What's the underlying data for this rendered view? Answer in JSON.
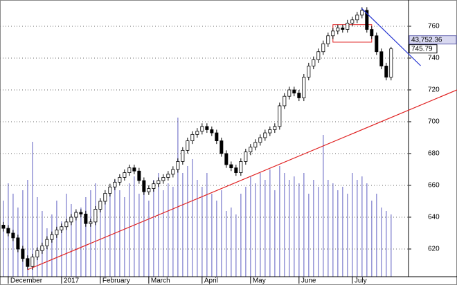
{
  "chart_data": {
    "type": "candlestick",
    "xticks": [
      {
        "value": 1,
        "label": "December"
      },
      {
        "value": 12,
        "label": "2017"
      },
      {
        "value": 20,
        "label": "February"
      },
      {
        "value": 30,
        "label": "March"
      },
      {
        "value": 41,
        "label": "April"
      },
      {
        "value": 51,
        "label": "May"
      },
      {
        "value": 61,
        "label": "June"
      },
      {
        "value": 72,
        "label": "July"
      }
    ],
    "xlim": [
      -0.7,
      83.6
    ],
    "ylim": [
      602.6,
      776.5
    ],
    "yticks": [
      620,
      640,
      660,
      680,
      700,
      720,
      740,
      760
    ],
    "grid": true,
    "open": [
      635,
      633,
      630,
      627,
      620,
      614,
      609,
      615,
      619,
      622,
      626,
      629,
      632,
      634,
      637,
      640,
      643,
      642,
      636,
      637,
      645,
      650,
      655,
      659,
      662,
      665,
      668,
      671,
      669,
      663,
      656,
      658,
      661,
      663,
      665,
      667,
      670,
      675,
      682,
      688,
      692,
      694,
      697,
      695,
      693,
      688,
      680,
      673,
      671,
      668,
      675,
      681,
      684,
      687,
      690,
      693,
      695,
      697,
      710,
      716,
      720,
      718,
      715,
      728,
      735,
      739,
      744,
      749,
      754,
      757,
      759,
      758,
      762,
      764,
      767,
      770,
      758,
      754,
      744,
      735,
      728
    ],
    "high": [
      637,
      635,
      632,
      629,
      622,
      616,
      617,
      621,
      624,
      628,
      631,
      634,
      636,
      639,
      642,
      645,
      645,
      644,
      639,
      647,
      652,
      657,
      661,
      664,
      667,
      670,
      673,
      673,
      671,
      665,
      660,
      663,
      665,
      667,
      669,
      672,
      677,
      684,
      690,
      694,
      696,
      699,
      699,
      697,
      695,
      690,
      682,
      675,
      673,
      677,
      683,
      686,
      689,
      692,
      695,
      697,
      699,
      712,
      718,
      722,
      722,
      720,
      730,
      737,
      741,
      746,
      751,
      756,
      759,
      761,
      761,
      764,
      766,
      769,
      772,
      772,
      760,
      756,
      746,
      737,
      747
    ],
    "low": [
      631,
      628,
      625,
      618,
      612,
      607,
      607,
      613,
      617,
      620,
      624,
      627,
      630,
      632,
      635,
      638,
      640,
      634,
      634,
      635,
      643,
      648,
      653,
      657,
      660,
      663,
      666,
      667,
      661,
      654,
      654,
      656,
      659,
      661,
      663,
      665,
      668,
      673,
      680,
      686,
      690,
      692,
      693,
      691,
      686,
      678,
      671,
      669,
      666,
      666,
      673,
      679,
      682,
      685,
      688,
      691,
      693,
      695,
      708,
      714,
      716,
      713,
      713,
      726,
      733,
      737,
      742,
      747,
      752,
      755,
      756,
      756,
      760,
      762,
      765,
      756,
      752,
      742,
      733,
      726,
      726
    ],
    "close": [
      633,
      630,
      627,
      620,
      614,
      609,
      615,
      619,
      622,
      626,
      629,
      632,
      634,
      637,
      640,
      643,
      642,
      636,
      637,
      645,
      650,
      655,
      659,
      662,
      665,
      668,
      671,
      669,
      663,
      656,
      658,
      661,
      663,
      665,
      667,
      670,
      675,
      682,
      688,
      692,
      694,
      697,
      695,
      693,
      688,
      680,
      673,
      671,
      668,
      675,
      681,
      684,
      687,
      690,
      693,
      695,
      697,
      710,
      716,
      720,
      718,
      715,
      728,
      735,
      739,
      744,
      749,
      754,
      757,
      759,
      758,
      762,
      764,
      767,
      770,
      758,
      754,
      744,
      735,
      728,
      745.79
    ],
    "volume": [
      110,
      135,
      120,
      100,
      125,
      140,
      195,
      115,
      95,
      70,
      90,
      110,
      80,
      120,
      105,
      95,
      100,
      115,
      125,
      135,
      110,
      120,
      130,
      140,
      125,
      115,
      135,
      145,
      120,
      130,
      110,
      140,
      150,
      125,
      135,
      130,
      230,
      150,
      160,
      170,
      140,
      130,
      150,
      120,
      110,
      125,
      95,
      100,
      90,
      120,
      130,
      145,
      135,
      150,
      140,
      155,
      125,
      160,
      150,
      140,
      145,
      135,
      150,
      120,
      140,
      130,
      205,
      140,
      135,
      125,
      130,
      120,
      150,
      140,
      145,
      135,
      110,
      120,
      100,
      95,
      90
    ],
    "vlim": [
      0,
      400
    ],
    "volume_color": "#9a9ad8",
    "trendlines": [
      {
        "color": "#e02020",
        "points": [
          [
            5,
            607
          ],
          [
            93.6,
            720
          ]
        ]
      },
      {
        "color": "#2030d0",
        "points": [
          [
            73.9,
            771.3
          ],
          [
            86.1,
            735.2
          ]
        ]
      }
    ],
    "box": {
      "color": "#e02020",
      "x": [
        68,
        76
      ],
      "y": [
        750,
        761
      ]
    },
    "indicator_label": "43,752.36"
  }
}
